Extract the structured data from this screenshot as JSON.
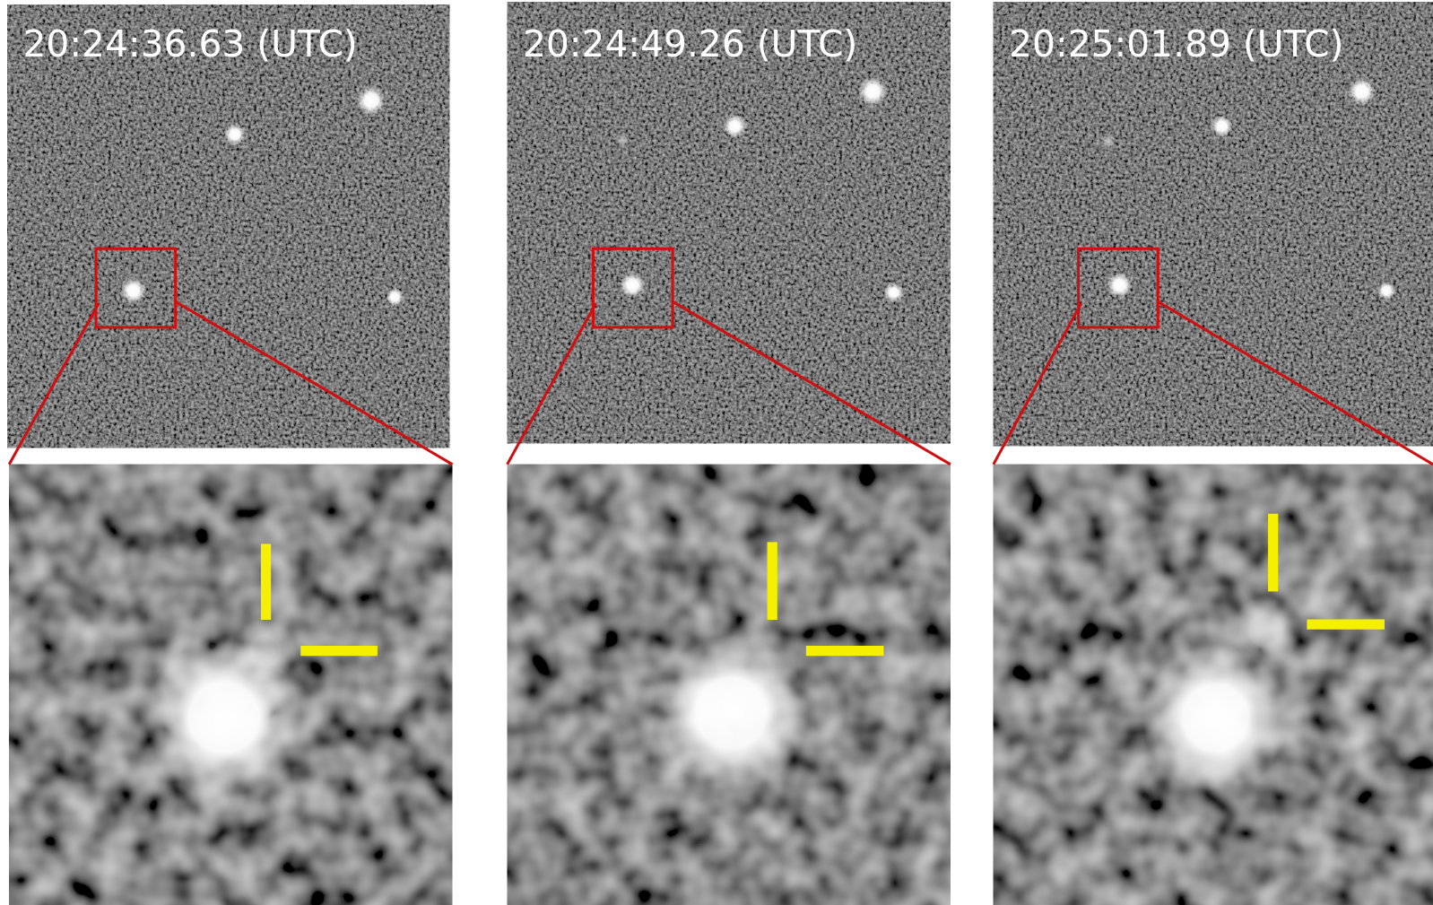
{
  "panels": [
    {
      "timestamp": "20:24:36.63 (UTC)"
    },
    {
      "timestamp": "20:24:49.26 (UTC)"
    },
    {
      "timestamp": "20:25:01.89 (UTC)"
    }
  ]
}
